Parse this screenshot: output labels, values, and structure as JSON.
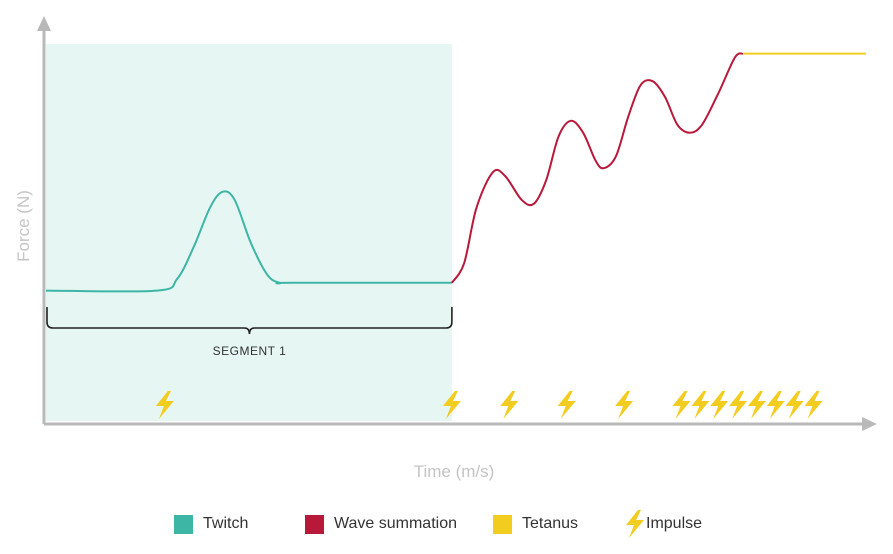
{
  "chart_data": {
    "type": "line",
    "title": "",
    "xlabel": "Time (m/s)",
    "ylabel": "Force (N)",
    "xlim": [
      0,
      100
    ],
    "ylim": [
      0,
      100
    ],
    "grid": false,
    "legend_position": "bottom",
    "highlight_region": {
      "x_start": 0,
      "x_end": 49.5,
      "color": "#e6f6f3"
    },
    "bracket": {
      "x_start": 0,
      "x_end": 49.5,
      "label": "SEGMENT 1"
    },
    "series": [
      {
        "name": "Twitch",
        "color": "#3db6a6",
        "points": [
          [
            0,
            33
          ],
          [
            13.5,
            33
          ],
          [
            16,
            36
          ],
          [
            18,
            44
          ],
          [
            20,
            54
          ],
          [
            21.5,
            58
          ],
          [
            23,
            56
          ],
          [
            25,
            45
          ],
          [
            27,
            37
          ],
          [
            28.5,
            35
          ],
          [
            30,
            35
          ],
          [
            49.5,
            35
          ]
        ]
      },
      {
        "name": "Wave summation",
        "color": "#b8183a",
        "points": [
          [
            49.5,
            35
          ],
          [
            51,
            40
          ],
          [
            52.5,
            54
          ],
          [
            54.5,
            63
          ],
          [
            56,
            62
          ],
          [
            58,
            56
          ],
          [
            59.5,
            55
          ],
          [
            61,
            61
          ],
          [
            62.5,
            72
          ],
          [
            64,
            76
          ],
          [
            65.5,
            73
          ],
          [
            67,
            66
          ],
          [
            68,
            64
          ],
          [
            69.5,
            67
          ],
          [
            71,
            77
          ],
          [
            72.5,
            85
          ],
          [
            74,
            86
          ],
          [
            75.5,
            82
          ],
          [
            77,
            75
          ],
          [
            78.5,
            73
          ],
          [
            80,
            75
          ],
          [
            82,
            83
          ],
          [
            84,
            92
          ],
          [
            85,
            93
          ]
        ]
      },
      {
        "name": "Tetanus",
        "color": "#f2cc1f",
        "points": [
          [
            85,
            93
          ],
          [
            100,
            93
          ]
        ]
      }
    ],
    "impulses": {
      "name": "Impulse",
      "color": "#f2cc1f",
      "x": [
        14.5,
        49.5,
        56.5,
        63.5,
        70.5,
        77.5,
        79.8,
        82.1,
        84.4,
        86.7,
        89,
        91.3,
        93.6
      ]
    }
  },
  "legend": {
    "items": [
      {
        "label": "Twitch",
        "color": "#3db6a6",
        "kind": "swatch"
      },
      {
        "label": "Wave summation",
        "color": "#b8183a",
        "kind": "swatch"
      },
      {
        "label": "Tetanus",
        "color": "#f2cc1f",
        "kind": "swatch"
      },
      {
        "label": "Impulse",
        "color": "#f2cc1f",
        "kind": "bolt"
      }
    ]
  },
  "icons": {
    "impulse": "lightning-bolt-icon",
    "axis_arrow": "arrow-head-icon"
  }
}
